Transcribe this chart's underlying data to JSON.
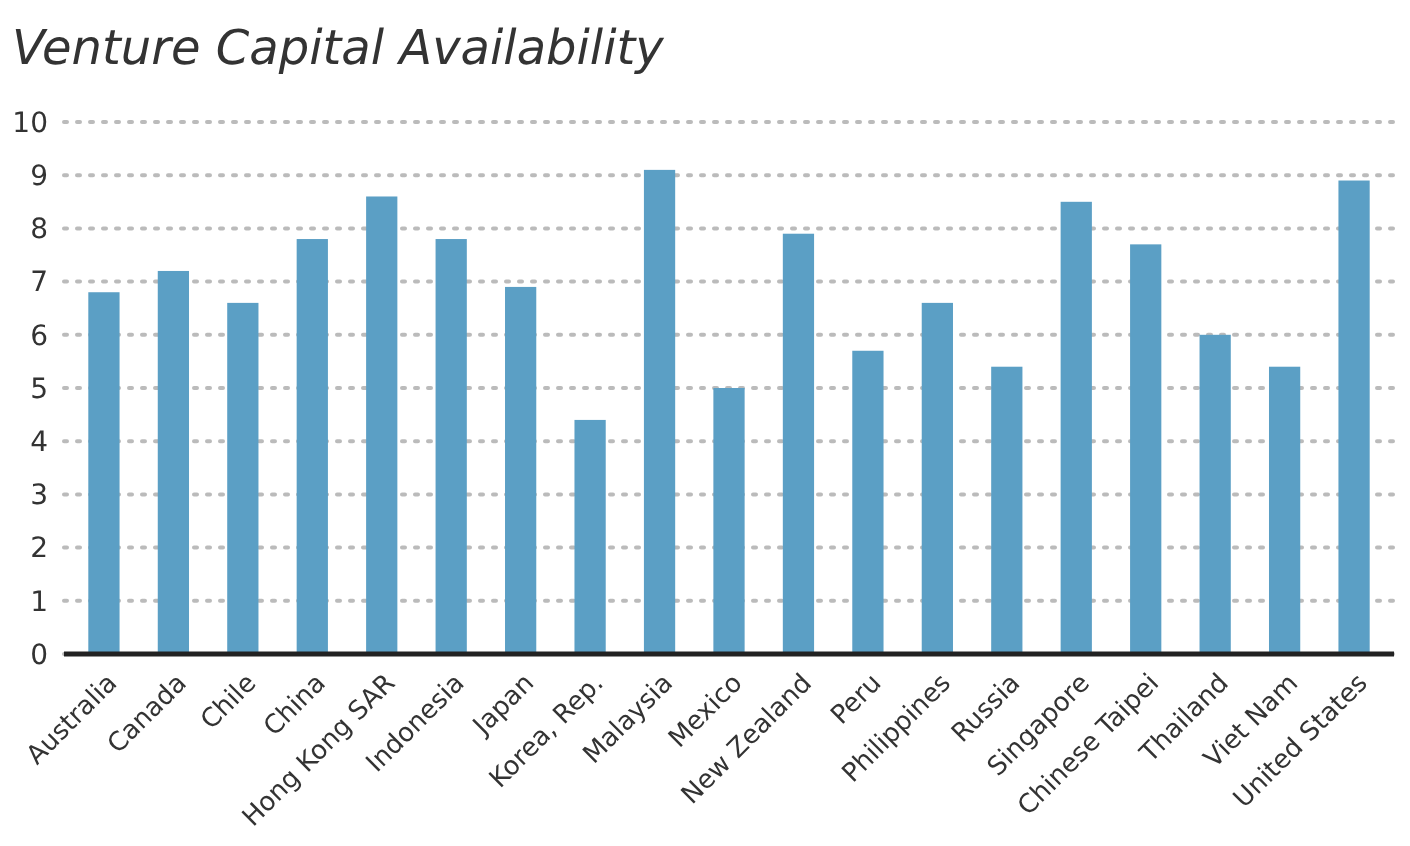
{
  "chart_data": {
    "type": "bar",
    "title": "Venture Capital Availability",
    "categories": [
      "Australia",
      "Canada",
      "Chile",
      "China",
      "Hong Kong SAR",
      "Indonesia",
      "Japan",
      "Korea, Rep.",
      "Malaysia",
      "Mexico",
      "New Zealand",
      "Peru",
      "Philippines",
      "Russia",
      "Singapore",
      "Chinese Taipei",
      "Thailand",
      "Viet Nam",
      "United States"
    ],
    "values": [
      6.8,
      7.2,
      6.6,
      7.8,
      8.6,
      7.8,
      6.9,
      4.4,
      9.1,
      5.0,
      7.9,
      5.7,
      6.6,
      5.4,
      8.5,
      7.7,
      6.0,
      5.4,
      8.9
    ],
    "color": "#5b9fc5",
    "ylim": [
      0,
      10
    ],
    "yticks": [
      0,
      1,
      2,
      3,
      4,
      5,
      6,
      7,
      8,
      9,
      10
    ],
    "grid": "y"
  }
}
